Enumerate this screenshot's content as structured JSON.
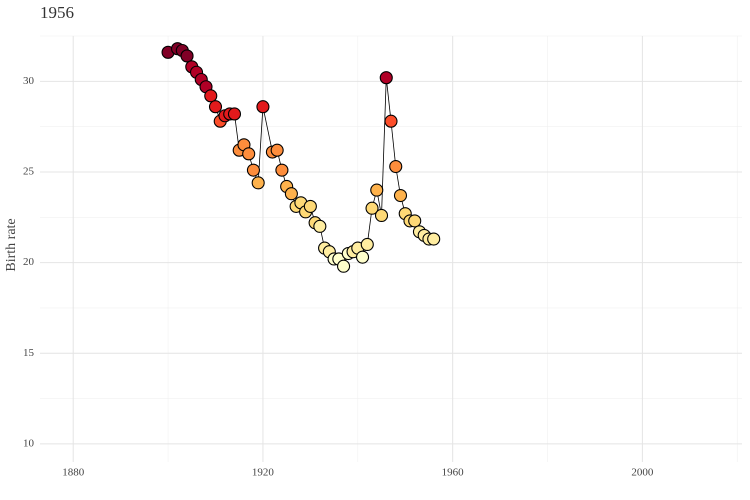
{
  "chart_data": {
    "type": "line",
    "title": "1956",
    "y_label": "Birth rate",
    "x": [
      1900,
      1902,
      1903,
      1904,
      1905,
      1906,
      1907,
      1908,
      1909,
      1910,
      1911,
      1912,
      1913,
      1914,
      1915,
      1916,
      1917,
      1918,
      1919,
      1920,
      1922,
      1923,
      1924,
      1925,
      1926,
      1927,
      1928,
      1929,
      1930,
      1931,
      1932,
      1933,
      1934,
      1935,
      1936,
      1937,
      1938,
      1939,
      1940,
      1941,
      1942,
      1943,
      1944,
      1945,
      1946,
      1947,
      1948,
      1949,
      1950,
      1951,
      1952,
      1953,
      1954,
      1955,
      1956
    ],
    "values": [
      31.6,
      31.8,
      31.7,
      31.4,
      30.8,
      30.5,
      30.1,
      29.7,
      29.2,
      28.6,
      27.8,
      28.1,
      28.2,
      28.2,
      26.2,
      26.5,
      26.0,
      25.1,
      24.4,
      28.6,
      26.1,
      26.2,
      25.1,
      24.2,
      23.8,
      23.1,
      23.3,
      22.8,
      23.1,
      22.2,
      22.0,
      20.8,
      20.6,
      20.2,
      20.2,
      19.8,
      20.5,
      20.6,
      20.8,
      20.3,
      21.0,
      23.0,
      24.0,
      22.6,
      30.2,
      27.8,
      25.3,
      23.7,
      22.7,
      22.3,
      22.3,
      21.7,
      21.5,
      21.3,
      21.3
    ],
    "line_color": "#000000",
    "point_outline": "#000000",
    "color_scale": [
      "#ffffcc",
      "#ffeda0",
      "#fed976",
      "#feb24c",
      "#fd8d3c",
      "#fc4e2a",
      "#e31a1c",
      "#b10026",
      "#800026"
    ],
    "xlim": [
      1873,
      2021
    ],
    "ylim": [
      9,
      32.5
    ],
    "xticks": [
      1880,
      1920,
      1960,
      2000
    ],
    "yticks": [
      10,
      15,
      20,
      25,
      30
    ],
    "xminor": [
      1900,
      1940,
      1980,
      2020
    ],
    "yminor": [
      12.5,
      17.5,
      22.5,
      27.5,
      32.5
    ],
    "grid": true
  }
}
